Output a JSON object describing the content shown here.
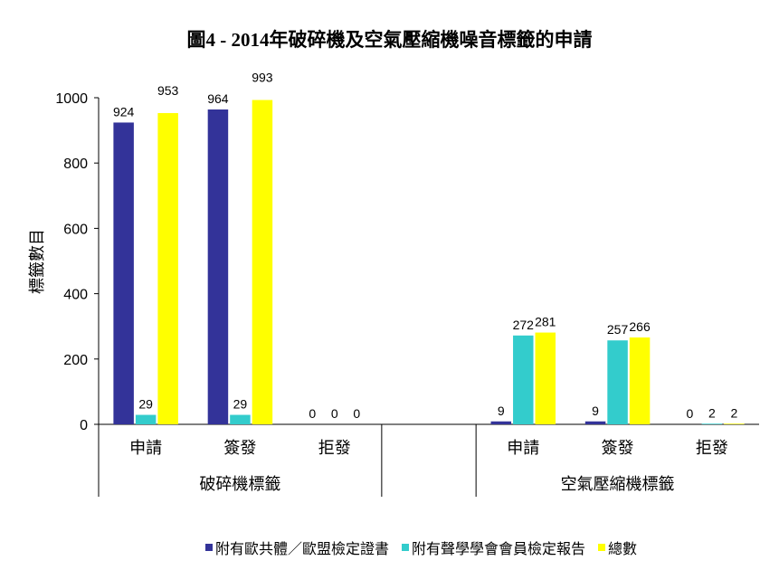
{
  "chart_data": {
    "type": "bar",
    "title": "圖4 - 2014年破碎機及空氣壓縮機噪音標籤的申請",
    "ylabel": "標籤數目",
    "xlabel": "",
    "ylim": [
      0,
      1000
    ],
    "yticks": [
      0,
      200,
      400,
      600,
      800,
      1000
    ],
    "grid": false,
    "legend_position": "bottom",
    "groups": [
      {
        "label": "破碎機標籤",
        "categories": [
          "申請",
          "簽發",
          "拒發"
        ]
      },
      {
        "label": "",
        "categories": [
          ""
        ]
      },
      {
        "label": "空氣壓縮機標籤",
        "categories": [
          "申請",
          "簽發",
          "拒發"
        ]
      }
    ],
    "categories": [
      "申請",
      "簽發",
      "拒發",
      "",
      "申請",
      "簽發",
      "拒發"
    ],
    "series": [
      {
        "name": "附有歐共體／歐盟檢定證書",
        "color": "#333399",
        "values": [
          924,
          964,
          0,
          null,
          9,
          9,
          0
        ]
      },
      {
        "name": "附有聲學學會會員檢定報告",
        "color": "#33CCCC",
        "values": [
          29,
          29,
          0,
          null,
          272,
          257,
          2
        ]
      },
      {
        "name": "總數",
        "color": "#FFFF00",
        "values": [
          953,
          993,
          0,
          null,
          281,
          266,
          2
        ]
      }
    ]
  }
}
